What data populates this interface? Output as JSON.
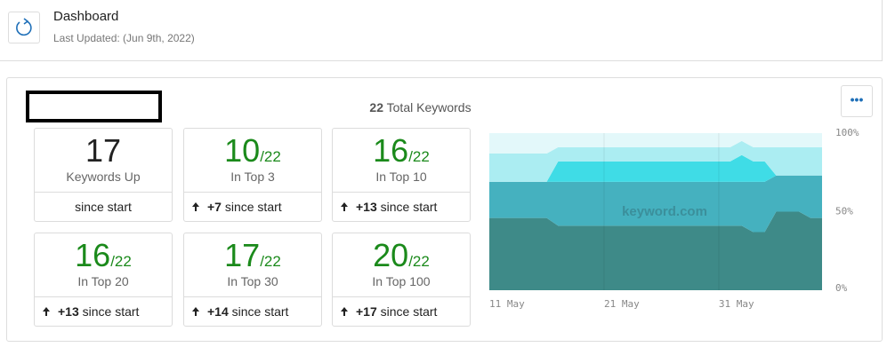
{
  "header": {
    "title": "Dashboard",
    "subtitle": "Last Updated: (Jun 9th, 2022)"
  },
  "summary": {
    "count": 22,
    "label": "Total Keywords"
  },
  "cards": [
    {
      "value": 17,
      "label": "Keywords Up",
      "footer": "since start"
    },
    {
      "value": 10,
      "total": "/22",
      "label": "In Top 3",
      "change": "+7",
      "footer": "since start"
    },
    {
      "value": 16,
      "total": "/22",
      "label": "In Top 10",
      "change": "+13",
      "footer": "since start"
    },
    {
      "value": 16,
      "total": "/22",
      "label": "In Top 20",
      "change": "+13",
      "footer": "since start"
    },
    {
      "value": 17,
      "total": "/22",
      "label": "In Top 30",
      "change": "+14",
      "footer": "since start"
    },
    {
      "value": 20,
      "total": "/22",
      "label": "In Top 100",
      "change": "+17",
      "footer": "since start"
    }
  ],
  "chart_data": {
    "type": "area",
    "stacked": true,
    "watermark": "keyword.com",
    "grid": true,
    "categories": [
      "11 May",
      null,
      null,
      null,
      null,
      null,
      null,
      null,
      null,
      null,
      "21 May",
      null,
      null,
      null,
      null,
      null,
      null,
      null,
      null,
      null,
      "31 May",
      null,
      null,
      null,
      null,
      null,
      null,
      null,
      null,
      null
    ],
    "series": [
      {
        "color": "#3e8a88",
        "values": [
          46,
          46,
          46,
          46,
          46,
          46,
          41,
          41,
          41,
          41,
          41,
          41,
          41,
          41,
          41,
          41,
          41,
          41,
          41,
          41,
          41,
          41,
          41,
          37,
          37,
          50,
          50,
          50,
          46,
          46
        ]
      },
      {
        "color": "#45b1bf",
        "values": [
          23,
          23,
          23,
          23,
          23,
          23,
          28,
          28,
          28,
          28,
          28,
          28,
          28,
          28,
          28,
          28,
          28,
          28,
          28,
          28,
          28,
          28,
          28,
          32,
          32,
          23,
          23,
          23,
          27,
          27
        ]
      },
      {
        "color": "#3fdce6",
        "values": [
          0,
          0,
          0,
          0,
          0,
          0,
          13,
          13,
          13,
          13,
          13,
          13,
          13,
          13,
          13,
          13,
          13,
          13,
          13,
          13,
          13,
          13,
          17,
          13,
          13,
          0,
          0,
          0,
          0,
          0
        ]
      },
      {
        "color": "#abedf2",
        "values": [
          18,
          18,
          18,
          18,
          18,
          18,
          9,
          9,
          9,
          9,
          9,
          9,
          9,
          9,
          9,
          9,
          9,
          9,
          9,
          9,
          9,
          9,
          9,
          9,
          9,
          18,
          18,
          18,
          18,
          18
        ]
      },
      {
        "color": "#e3f8fa",
        "values": [
          13,
          13,
          13,
          13,
          13,
          13,
          9,
          9,
          9,
          9,
          9,
          9,
          9,
          9,
          9,
          9,
          9,
          9,
          9,
          9,
          9,
          9,
          5,
          9,
          9,
          9,
          9,
          9,
          9,
          9
        ]
      }
    ],
    "ylim": [
      0,
      100
    ],
    "yticks": [
      {
        "value": 0,
        "label": "0%"
      },
      {
        "value": 50,
        "label": "50%"
      },
      {
        "value": 100,
        "label": "100%"
      }
    ]
  }
}
